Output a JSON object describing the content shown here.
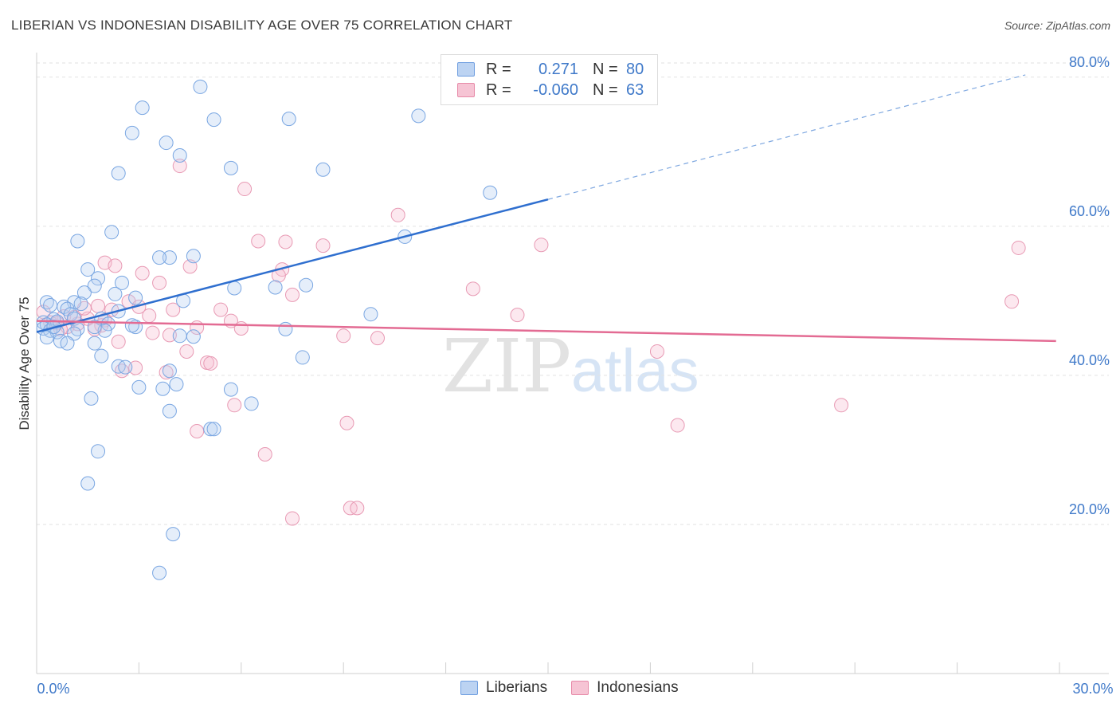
{
  "title": "LIBERIAN VS INDONESIAN DISABILITY AGE OVER 75 CORRELATION CHART",
  "source": "Source: ZipAtlas.com",
  "watermark": {
    "zip": "ZIP",
    "atlas": "atlas"
  },
  "legend": {
    "r_label": "R =",
    "n_label": "N =",
    "rows": [
      {
        "r": "0.271",
        "n": "80",
        "color": "#6f9ee0"
      },
      {
        "r": "-0.060",
        "n": "63",
        "color": "#e78aa8"
      }
    ]
  },
  "series_labels": {
    "liberians": "Liberians",
    "indonesians": "Indonesians"
  },
  "x_tick_labels": {
    "left": "0.0%",
    "right": "30.0%"
  },
  "chart_data": {
    "type": "scatter",
    "title": "LIBERIAN VS INDONESIAN DISABILITY AGE OVER 75 CORRELATION CHART",
    "xlabel": "",
    "ylabel": "Disability Age Over 75",
    "xlim": [
      0,
      30
    ],
    "ylim": [
      0,
      85
    ],
    "y_ticks": [
      {
        "value": 20,
        "label": "20.0%"
      },
      {
        "value": 40,
        "label": "40.0%"
      },
      {
        "value": 60,
        "label": "60.0%"
      },
      {
        "value": 80,
        "label": "80.0%"
      }
    ],
    "grid": true,
    "colors": {
      "liberians": "#6f9ee0",
      "indonesians": "#e78aa8",
      "liberians_line": "#2f6fcf",
      "indonesians_line": "#e36b93"
    },
    "series": [
      {
        "name": "Liberians",
        "r": 0.271,
        "n": 80,
        "trend": {
          "x0": 0,
          "y0": 45.8,
          "x1": 15.0,
          "y1": 63.6,
          "dash_to_x": 29.0,
          "dash_to_y": 80.3
        },
        "points": [
          [
            4.8,
            78.7
          ],
          [
            3.1,
            75.9
          ],
          [
            11.2,
            74.8
          ],
          [
            5.2,
            74.3
          ],
          [
            7.4,
            74.4
          ],
          [
            2.8,
            72.5
          ],
          [
            3.8,
            71.2
          ],
          [
            4.2,
            69.5
          ],
          [
            5.7,
            67.8
          ],
          [
            8.4,
            67.6
          ],
          [
            2.4,
            67.1
          ],
          [
            13.3,
            64.5
          ],
          [
            2.2,
            59.2
          ],
          [
            10.8,
            58.6
          ],
          [
            1.2,
            58.0
          ],
          [
            4.6,
            56.0
          ],
          [
            3.9,
            55.8
          ],
          [
            3.6,
            55.8
          ],
          [
            1.5,
            54.2
          ],
          [
            1.8,
            53.0
          ],
          [
            2.5,
            52.4
          ],
          [
            7.9,
            52.1
          ],
          [
            5.8,
            51.7
          ],
          [
            7.0,
            51.8
          ],
          [
            1.7,
            52.0
          ],
          [
            1.4,
            51.1
          ],
          [
            2.3,
            50.9
          ],
          [
            2.9,
            50.4
          ],
          [
            1.1,
            49.8
          ],
          [
            1.3,
            49.6
          ],
          [
            0.3,
            49.8
          ],
          [
            4.3,
            50.0
          ],
          [
            0.4,
            49.4
          ],
          [
            0.8,
            49.2
          ],
          [
            0.9,
            48.9
          ],
          [
            2.4,
            48.6
          ],
          [
            1.0,
            48.2
          ],
          [
            1.1,
            47.6
          ],
          [
            1.9,
            47.6
          ],
          [
            0.2,
            47.1
          ],
          [
            0.5,
            47.5
          ],
          [
            0.3,
            46.8
          ],
          [
            0.6,
            47.2
          ],
          [
            2.1,
            46.9
          ],
          [
            0.2,
            46.3
          ],
          [
            0.4,
            46.0
          ],
          [
            1.2,
            46.2
          ],
          [
            2.0,
            46.0
          ],
          [
            0.6,
            45.8
          ],
          [
            2.9,
            46.5
          ],
          [
            1.1,
            45.6
          ],
          [
            0.3,
            45.1
          ],
          [
            4.2,
            45.3
          ],
          [
            4.6,
            45.2
          ],
          [
            9.8,
            48.2
          ],
          [
            7.3,
            46.2
          ],
          [
            0.7,
            44.6
          ],
          [
            0.9,
            44.3
          ],
          [
            1.7,
            44.3
          ],
          [
            1.9,
            42.6
          ],
          [
            7.8,
            42.4
          ],
          [
            2.4,
            41.2
          ],
          [
            2.6,
            41.1
          ],
          [
            3.9,
            40.6
          ],
          [
            4.1,
            38.8
          ],
          [
            3.0,
            38.4
          ],
          [
            3.7,
            38.2
          ],
          [
            5.7,
            38.1
          ],
          [
            1.6,
            36.9
          ],
          [
            6.3,
            36.2
          ],
          [
            3.9,
            35.2
          ],
          [
            5.1,
            32.8
          ],
          [
            5.2,
            32.8
          ],
          [
            1.8,
            29.8
          ],
          [
            1.5,
            25.5
          ],
          [
            4.0,
            18.7
          ],
          [
            3.6,
            13.5
          ],
          [
            1.7,
            46.5
          ],
          [
            0.5,
            46.5
          ],
          [
            2.8,
            46.7
          ]
        ]
      },
      {
        "name": "Indonesians",
        "r": -0.06,
        "n": 63,
        "trend": {
          "x0": 0,
          "y0": 47.3,
          "x1": 29.9,
          "y1": 44.6
        },
        "points": [
          [
            4.2,
            68.1
          ],
          [
            6.1,
            65.0
          ],
          [
            10.6,
            61.5
          ],
          [
            6.5,
            58.0
          ],
          [
            7.3,
            57.9
          ],
          [
            8.4,
            57.4
          ],
          [
            14.8,
            57.5
          ],
          [
            28.8,
            57.1
          ],
          [
            2.0,
            55.1
          ],
          [
            2.3,
            54.7
          ],
          [
            4.5,
            54.6
          ],
          [
            7.2,
            54.2
          ],
          [
            3.1,
            53.7
          ],
          [
            7.1,
            53.4
          ],
          [
            3.6,
            52.4
          ],
          [
            12.8,
            51.6
          ],
          [
            7.5,
            50.8
          ],
          [
            2.7,
            49.9
          ],
          [
            28.6,
            49.9
          ],
          [
            1.8,
            49.3
          ],
          [
            4.0,
            48.8
          ],
          [
            5.4,
            48.8
          ],
          [
            3.3,
            48.0
          ],
          [
            14.1,
            48.1
          ],
          [
            0.8,
            47.9
          ],
          [
            1.5,
            47.6
          ],
          [
            2.0,
            47.4
          ],
          [
            5.7,
            47.3
          ],
          [
            0.4,
            47.1
          ],
          [
            0.6,
            47.0
          ],
          [
            1.2,
            46.9
          ],
          [
            1.9,
            46.7
          ],
          [
            0.9,
            46.5
          ],
          [
            1.7,
            46.2
          ],
          [
            4.7,
            46.4
          ],
          [
            6.0,
            46.3
          ],
          [
            3.4,
            45.7
          ],
          [
            3.9,
            45.4
          ],
          [
            9.0,
            45.3
          ],
          [
            10.0,
            45.0
          ],
          [
            2.4,
            44.5
          ],
          [
            4.4,
            43.2
          ],
          [
            18.2,
            43.2
          ],
          [
            5.0,
            41.7
          ],
          [
            5.1,
            41.6
          ],
          [
            3.8,
            40.4
          ],
          [
            2.5,
            40.6
          ],
          [
            5.8,
            36.0
          ],
          [
            23.6,
            36.0
          ],
          [
            9.1,
            33.6
          ],
          [
            18.8,
            33.3
          ],
          [
            4.7,
            32.5
          ],
          [
            6.7,
            29.4
          ],
          [
            9.2,
            22.2
          ],
          [
            9.4,
            22.2
          ],
          [
            7.5,
            20.8
          ],
          [
            0.2,
            48.5
          ],
          [
            1.1,
            47.8
          ],
          [
            2.2,
            48.8
          ],
          [
            0.7,
            46.2
          ],
          [
            3.0,
            49.2
          ],
          [
            1.4,
            49.0
          ],
          [
            2.9,
            41.0
          ]
        ]
      }
    ]
  }
}
